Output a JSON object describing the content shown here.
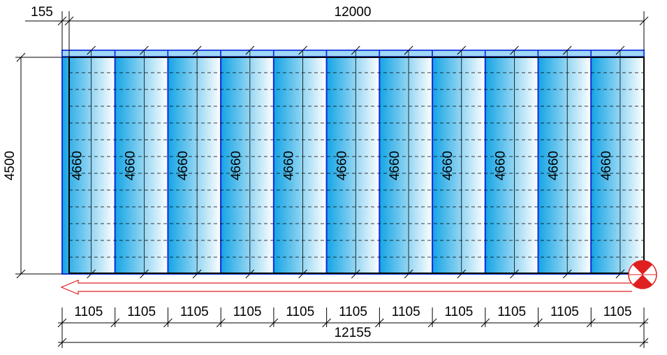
{
  "dimensions": {
    "offset": 155,
    "span": 12000,
    "height": 4500,
    "total": 12155
  },
  "panels": [
    {
      "length": 4660,
      "width": 1105
    },
    {
      "length": 4660,
      "width": 1105
    },
    {
      "length": 4660,
      "width": 1105
    },
    {
      "length": 4660,
      "width": 1105
    },
    {
      "length": 4660,
      "width": 1105
    },
    {
      "length": 4660,
      "width": 1105
    },
    {
      "length": 4660,
      "width": 1105
    },
    {
      "length": 4660,
      "width": 1105
    },
    {
      "length": 4660,
      "width": 1105
    },
    {
      "length": 4660,
      "width": 1105
    },
    {
      "length": 4660,
      "width": 1105
    }
  ]
}
